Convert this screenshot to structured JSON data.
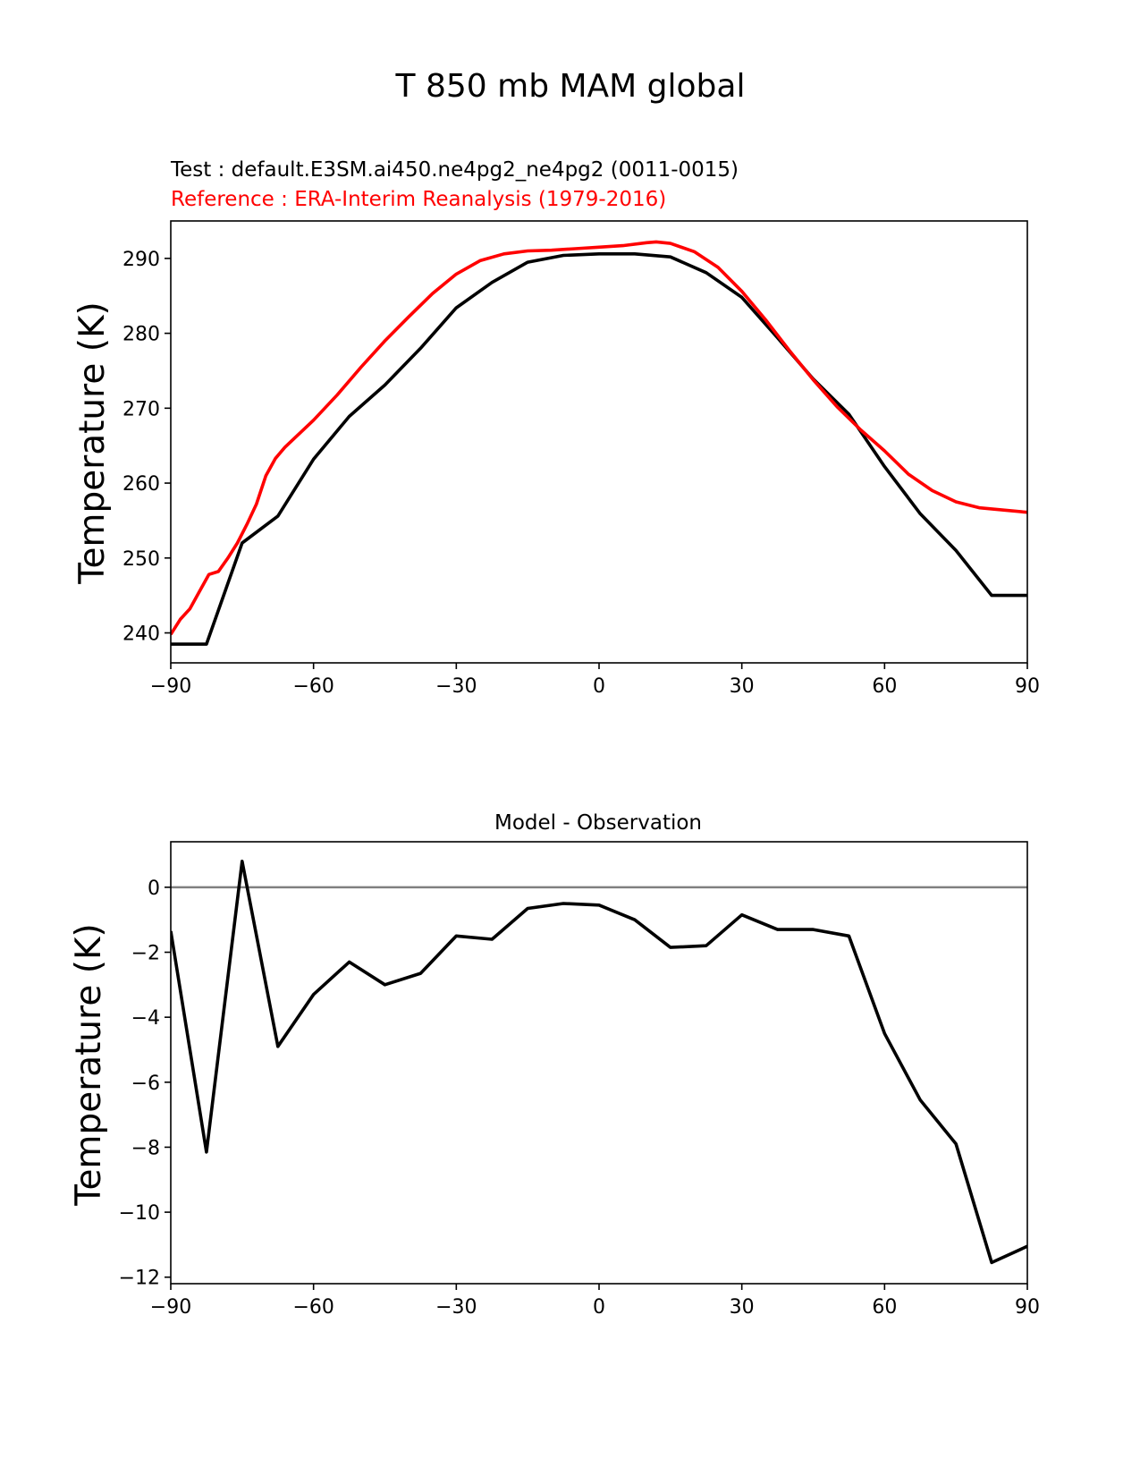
{
  "figure": {
    "title": "T 850 mb MAM global",
    "test_label": "Test : default.E3SM.ai450.ne4pg2_ne4pg2 (0011-0015)",
    "reference_label": "Reference : ERA-Interim Reanalysis (1979-2016)"
  },
  "colors": {
    "test": "#000000",
    "reference": "#ff0000",
    "zero_line": "#808080",
    "axes": "#000000"
  },
  "chart_data": [
    {
      "type": "line",
      "title": "",
      "xlabel": "",
      "ylabel": "Temperature (K)",
      "xlim": [
        -90,
        90
      ],
      "ylim": [
        236,
        295
      ],
      "xticks": [
        -90,
        -60,
        -30,
        0,
        30,
        60,
        90
      ],
      "xtick_labels": [
        "−90",
        "−60",
        "−30",
        "0",
        "30",
        "60",
        "90"
      ],
      "yticks": [
        240,
        250,
        260,
        270,
        280,
        290
      ],
      "ytick_labels": [
        "240",
        "250",
        "260",
        "270",
        "280",
        "290"
      ],
      "series": [
        {
          "name": "Test",
          "color": "#000000",
          "x": [
            -90,
            -82.5,
            -75,
            -67.5,
            -60,
            -52.5,
            -45,
            -37.5,
            -30,
            -22.5,
            -15,
            -7.5,
            0,
            7.5,
            15,
            22.5,
            30,
            37.5,
            45,
            52.5,
            60,
            67.5,
            75,
            82.5,
            90
          ],
          "y": [
            238.5,
            238.5,
            252.0,
            255.6,
            263.2,
            268.9,
            273.1,
            278.0,
            283.4,
            286.8,
            289.5,
            290.4,
            290.6,
            290.6,
            290.2,
            288.1,
            284.8,
            279.4,
            273.9,
            269.2,
            262.2,
            255.9,
            251.0,
            245.0,
            245.0
          ]
        },
        {
          "name": "Reference",
          "color": "#ff0000",
          "x": [
            -90,
            -88,
            -86,
            -84,
            -82,
            -80,
            -78,
            -76,
            -74,
            -72,
            -70,
            -68,
            -66,
            -64,
            -62,
            -60,
            -55,
            -50,
            -45,
            -40,
            -35,
            -30,
            -25,
            -20,
            -15,
            -10,
            -5,
            0,
            5,
            10,
            12,
            15,
            20,
            25,
            30,
            35,
            40,
            45,
            50,
            55,
            60,
            65,
            70,
            75,
            80,
            85,
            90
          ],
          "y": [
            239.8,
            241.8,
            243.2,
            245.5,
            247.8,
            248.2,
            250.0,
            252.0,
            254.5,
            257.2,
            261.0,
            263.3,
            264.8,
            266.0,
            267.2,
            268.4,
            271.8,
            275.5,
            279.0,
            282.2,
            285.3,
            287.9,
            289.7,
            290.6,
            291.0,
            291.1,
            291.3,
            291.5,
            291.7,
            292.1,
            292.2,
            292.0,
            290.9,
            288.8,
            285.6,
            281.8,
            277.7,
            273.8,
            270.2,
            267.1,
            264.3,
            261.2,
            259.0,
            257.5,
            256.7,
            256.4,
            256.1
          ]
        }
      ]
    },
    {
      "type": "line",
      "title": "Model - Observation",
      "xlabel": "",
      "ylabel": "Temperature (K)",
      "xlim": [
        -90,
        90
      ],
      "ylim": [
        -12.2,
        1.4
      ],
      "xticks": [
        -90,
        -60,
        -30,
        0,
        30,
        60,
        90
      ],
      "xtick_labels": [
        "−90",
        "−60",
        "−30",
        "0",
        "30",
        "60",
        "90"
      ],
      "yticks": [
        0,
        -2,
        -4,
        -6,
        -8,
        -10,
        -12
      ],
      "ytick_labels": [
        "0",
        "−2",
        "−4",
        "−6",
        "−8",
        "−10",
        "−12"
      ],
      "zero_line": 0,
      "series": [
        {
          "name": "Model - Observation",
          "color": "#000000",
          "x": [
            -90,
            -82.5,
            -75,
            -67.5,
            -60,
            -52.5,
            -45,
            -37.5,
            -30,
            -22.5,
            -15,
            -7.5,
            0,
            7.5,
            15,
            22.5,
            30,
            37.5,
            45,
            52.5,
            60,
            67.5,
            75,
            82.5,
            90
          ],
          "y": [
            -1.35,
            -8.15,
            0.8,
            -4.9,
            -3.3,
            -2.3,
            -3.0,
            -2.65,
            -1.5,
            -1.6,
            -0.65,
            -0.5,
            -0.55,
            -1.0,
            -1.85,
            -1.8,
            -0.85,
            -1.3,
            -1.3,
            -1.5,
            -4.5,
            -6.55,
            -7.9,
            -11.55,
            -11.05
          ]
        }
      ]
    }
  ]
}
